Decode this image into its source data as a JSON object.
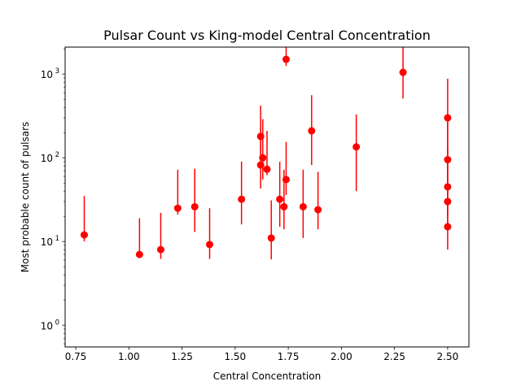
{
  "chart_data": {
    "type": "scatter",
    "title": "Pulsar Count vs King-model Central Concentration",
    "xlabel": "Central Concentration",
    "ylabel": "Most probable count of pulsars",
    "xlim": [
      0.7,
      2.6
    ],
    "ylim": [
      0.55,
      2100
    ],
    "yscale": "log",
    "grid": false,
    "x_ticks": [
      0.75,
      1.0,
      1.25,
      1.5,
      1.75,
      2.0,
      2.25,
      2.5
    ],
    "x_tick_labels": [
      "0.75",
      "1.00",
      "1.25",
      "1.50",
      "1.75",
      "2.00",
      "2.25",
      "2.50"
    ],
    "y_ticks": [
      1,
      10,
      100,
      1000
    ],
    "y_tick_labels": [
      {
        "base": "10",
        "exp": "0"
      },
      {
        "base": "10",
        "exp": "1"
      },
      {
        "base": "10",
        "exp": "2"
      },
      {
        "base": "10",
        "exp": "3"
      }
    ],
    "marker_color": "#ff0000",
    "points": [
      {
        "x": 0.79,
        "y": 12,
        "low": 10,
        "high": 35
      },
      {
        "x": 1.05,
        "y": 7,
        "low": 6.5,
        "high": 19
      },
      {
        "x": 1.15,
        "y": 8,
        "low": 6.2,
        "high": 22
      },
      {
        "x": 1.23,
        "y": 25,
        "low": 21,
        "high": 72
      },
      {
        "x": 1.31,
        "y": 26,
        "low": 13,
        "high": 74
      },
      {
        "x": 1.38,
        "y": 9.2,
        "low": 6.2,
        "high": 25
      },
      {
        "x": 1.53,
        "y": 32,
        "low": 16,
        "high": 90
      },
      {
        "x": 1.62,
        "y": 180,
        "low": 100,
        "high": 420
      },
      {
        "x": 1.62,
        "y": 82,
        "low": 43,
        "high": 230
      },
      {
        "x": 1.63,
        "y": 100,
        "low": 55,
        "high": 290
      },
      {
        "x": 1.65,
        "y": 73,
        "low": 62,
        "high": 210
      },
      {
        "x": 1.67,
        "y": 11,
        "low": 6.1,
        "high": 31
      },
      {
        "x": 1.71,
        "y": 32,
        "low": 15,
        "high": 90
      },
      {
        "x": 1.73,
        "y": 26,
        "low": 14,
        "high": 72
      },
      {
        "x": 1.74,
        "y": 55,
        "low": 36,
        "high": 155
      },
      {
        "x": 1.74,
        "y": 1500,
        "low": 1250,
        "high": 2100
      },
      {
        "x": 1.82,
        "y": 26,
        "low": 11,
        "high": 72
      },
      {
        "x": 1.86,
        "y": 210,
        "low": 82,
        "high": 560
      },
      {
        "x": 1.89,
        "y": 24,
        "low": 14,
        "high": 68
      },
      {
        "x": 2.07,
        "y": 135,
        "low": 40,
        "high": 330
      },
      {
        "x": 2.29,
        "y": 1050,
        "low": 510,
        "high": 2100
      },
      {
        "x": 2.5,
        "y": 300,
        "low": 110,
        "high": 880
      },
      {
        "x": 2.5,
        "y": 95,
        "low": 40,
        "high": 270
      },
      {
        "x": 2.5,
        "y": 45,
        "low": 20,
        "high": 130
      },
      {
        "x": 2.5,
        "y": 30,
        "low": 14,
        "high": 85
      },
      {
        "x": 2.5,
        "y": 15,
        "low": 8,
        "high": 42
      }
    ]
  }
}
